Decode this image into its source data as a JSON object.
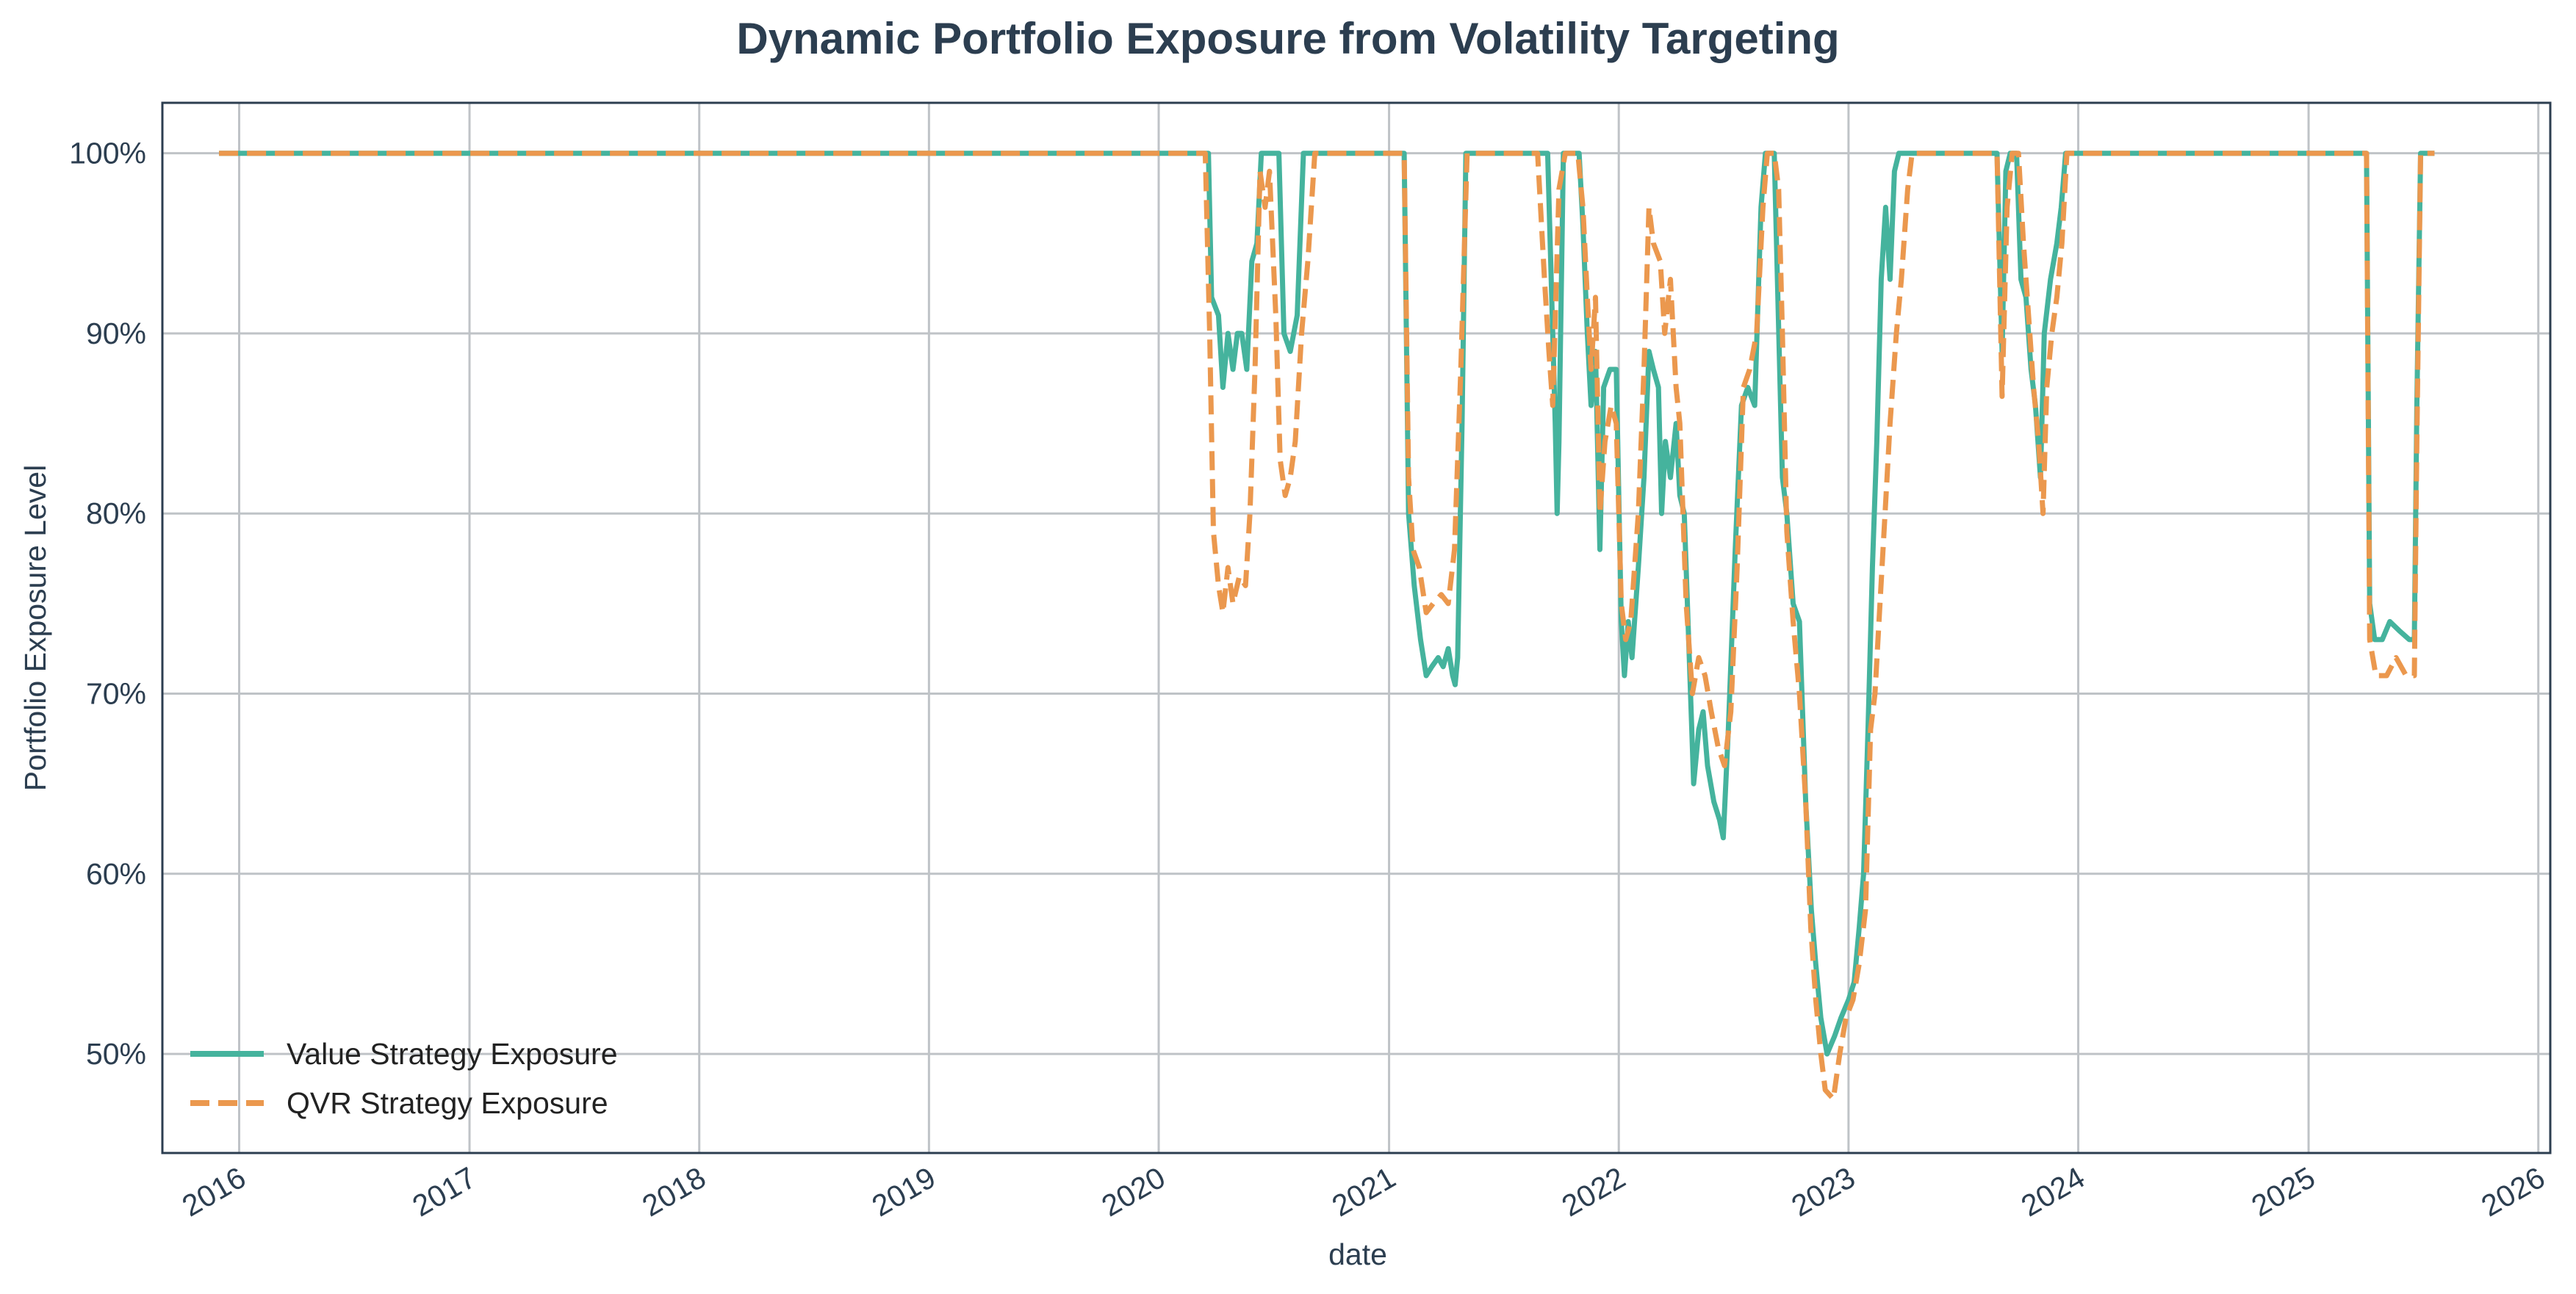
{
  "chart_data": {
    "type": "line",
    "title": "Dynamic Portfolio Exposure from Volatility Targeting",
    "xlabel": "date",
    "ylabel": "Portfolio Exposure Level",
    "xlim": [
      "2015-09-01",
      "2026-01-20"
    ],
    "ylim": [
      0.445,
      1.028
    ],
    "x_ticks": [
      "2016",
      "2017",
      "2018",
      "2019",
      "2020",
      "2021",
      "2022",
      "2023",
      "2024",
      "2025",
      "2026"
    ],
    "y_ticks": [
      0.5,
      0.6,
      0.7,
      0.8,
      0.9,
      1.0
    ],
    "y_tick_labels": [
      "50%",
      "60%",
      "70%",
      "80%",
      "90%",
      "100%"
    ],
    "grid": true,
    "legend_position": "lower-left",
    "series": [
      {
        "name": "Value Strategy Exposure",
        "color": "#45b39d",
        "style": "solid",
        "points": [
          [
            "2015-11-30",
            1.0
          ],
          [
            "2020-03-20",
            1.0
          ],
          [
            "2020-03-25",
            0.92
          ],
          [
            "2020-04-05",
            0.91
          ],
          [
            "2020-04-12",
            0.87
          ],
          [
            "2020-04-20",
            0.9
          ],
          [
            "2020-04-28",
            0.88
          ],
          [
            "2020-05-05",
            0.9
          ],
          [
            "2020-05-12",
            0.9
          ],
          [
            "2020-05-20",
            0.88
          ],
          [
            "2020-05-28",
            0.94
          ],
          [
            "2020-06-05",
            0.95
          ],
          [
            "2020-06-12",
            1.0
          ],
          [
            "2020-07-10",
            1.0
          ],
          [
            "2020-07-18",
            0.9
          ],
          [
            "2020-07-28",
            0.89
          ],
          [
            "2020-08-08",
            0.91
          ],
          [
            "2020-08-18",
            1.0
          ],
          [
            "2021-01-25",
            1.0
          ],
          [
            "2021-02-01",
            0.8
          ],
          [
            "2021-02-10",
            0.76
          ],
          [
            "2021-02-20",
            0.73
          ],
          [
            "2021-03-01",
            0.71
          ],
          [
            "2021-03-10",
            0.715
          ],
          [
            "2021-03-20",
            0.72
          ],
          [
            "2021-03-28",
            0.715
          ],
          [
            "2021-04-05",
            0.725
          ],
          [
            "2021-04-12",
            0.71
          ],
          [
            "2021-04-16",
            0.705
          ],
          [
            "2021-04-20",
            0.72
          ],
          [
            "2021-04-27",
            0.85
          ],
          [
            "2021-05-03",
            1.0
          ],
          [
            "2021-09-10",
            1.0
          ],
          [
            "2021-09-18",
            0.9
          ],
          [
            "2021-09-22",
            0.85
          ],
          [
            "2021-09-25",
            0.8
          ],
          [
            "2021-09-28",
            0.84
          ],
          [
            "2021-10-05",
            1.0
          ],
          [
            "2021-10-30",
            1.0
          ],
          [
            "2021-11-05",
            0.96
          ],
          [
            "2021-11-12",
            0.9
          ],
          [
            "2021-11-18",
            0.86
          ],
          [
            "2021-11-25",
            0.89
          ],
          [
            "2021-12-02",
            0.78
          ],
          [
            "2021-12-08",
            0.87
          ],
          [
            "2021-12-18",
            0.88
          ],
          [
            "2021-12-28",
            0.88
          ],
          [
            "2022-01-05",
            0.74
          ],
          [
            "2022-01-10",
            0.71
          ],
          [
            "2022-01-16",
            0.74
          ],
          [
            "2022-01-22",
            0.72
          ],
          [
            "2022-02-01",
            0.77
          ],
          [
            "2022-02-10",
            0.82
          ],
          [
            "2022-02-18",
            0.89
          ],
          [
            "2022-02-25",
            0.88
          ],
          [
            "2022-03-05",
            0.87
          ],
          [
            "2022-03-10",
            0.8
          ],
          [
            "2022-03-16",
            0.84
          ],
          [
            "2022-03-24",
            0.82
          ],
          [
            "2022-04-02",
            0.85
          ],
          [
            "2022-04-08",
            0.81
          ],
          [
            "2022-04-15",
            0.8
          ],
          [
            "2022-04-22",
            0.73
          ],
          [
            "2022-04-30",
            0.65
          ],
          [
            "2022-05-08",
            0.68
          ],
          [
            "2022-05-15",
            0.69
          ],
          [
            "2022-05-22",
            0.66
          ],
          [
            "2022-06-01",
            0.64
          ],
          [
            "2022-06-10",
            0.63
          ],
          [
            "2022-06-16",
            0.62
          ],
          [
            "2022-06-24",
            0.68
          ],
          [
            "2022-07-05",
            0.78
          ],
          [
            "2022-07-15",
            0.86
          ],
          [
            "2022-07-25",
            0.87
          ],
          [
            "2022-08-05",
            0.86
          ],
          [
            "2022-08-15",
            0.97
          ],
          [
            "2022-08-22",
            1.0
          ],
          [
            "2022-09-05",
            1.0
          ],
          [
            "2022-09-10",
            0.93
          ],
          [
            "2022-09-18",
            0.82
          ],
          [
            "2022-09-25",
            0.8
          ],
          [
            "2022-10-05",
            0.75
          ],
          [
            "2022-10-15",
            0.74
          ],
          [
            "2022-10-25",
            0.64
          ],
          [
            "2022-11-03",
            0.58
          ],
          [
            "2022-11-10",
            0.55
          ],
          [
            "2022-11-18",
            0.52
          ],
          [
            "2022-11-28",
            0.5
          ],
          [
            "2022-12-10",
            0.51
          ],
          [
            "2022-12-20",
            0.52
          ],
          [
            "2023-01-01",
            0.53
          ],
          [
            "2023-01-10",
            0.54
          ],
          [
            "2023-01-18",
            0.57
          ],
          [
            "2023-01-25",
            0.6
          ],
          [
            "2023-02-01",
            0.68
          ],
          [
            "2023-02-08",
            0.77
          ],
          [
            "2023-02-15",
            0.84
          ],
          [
            "2023-02-22",
            0.93
          ],
          [
            "2023-03-01",
            0.97
          ],
          [
            "2023-03-08",
            0.93
          ],
          [
            "2023-03-15",
            0.99
          ],
          [
            "2023-03-22",
            1.0
          ],
          [
            "2023-08-25",
            1.0
          ],
          [
            "2023-09-02",
            0.89
          ],
          [
            "2023-09-08",
            0.99
          ],
          [
            "2023-09-15",
            1.0
          ],
          [
            "2023-09-25",
            1.0
          ],
          [
            "2023-10-02",
            0.93
          ],
          [
            "2023-10-10",
            0.92
          ],
          [
            "2023-10-18",
            0.88
          ],
          [
            "2023-10-25",
            0.86
          ],
          [
            "2023-11-02",
            0.82
          ],
          [
            "2023-11-08",
            0.9
          ],
          [
            "2023-11-18",
            0.93
          ],
          [
            "2023-11-28",
            0.95
          ],
          [
            "2023-12-05",
            0.97
          ],
          [
            "2023-12-12",
            1.0
          ],
          [
            "2025-04-03",
            1.0
          ],
          [
            "2025-04-08",
            0.75
          ],
          [
            "2025-04-16",
            0.73
          ],
          [
            "2025-04-28",
            0.73
          ],
          [
            "2025-05-10",
            0.74
          ],
          [
            "2025-05-25",
            0.735
          ],
          [
            "2025-06-10",
            0.73
          ],
          [
            "2025-06-18",
            0.73
          ],
          [
            "2025-06-22",
            0.86
          ],
          [
            "2025-06-28",
            1.0
          ],
          [
            "2025-07-20",
            1.0
          ]
        ]
      },
      {
        "name": "QVR Strategy Exposure",
        "color": "#eb984e",
        "style": "dashed",
        "points": [
          [
            "2015-11-30",
            1.0
          ],
          [
            "2020-03-15",
            1.0
          ],
          [
            "2020-03-22",
            0.9
          ],
          [
            "2020-03-28",
            0.79
          ],
          [
            "2020-04-05",
            0.76
          ],
          [
            "2020-04-12",
            0.745
          ],
          [
            "2020-04-20",
            0.77
          ],
          [
            "2020-04-28",
            0.75
          ],
          [
            "2020-05-08",
            0.765
          ],
          [
            "2020-05-18",
            0.76
          ],
          [
            "2020-05-25",
            0.8
          ],
          [
            "2020-06-02",
            0.88
          ],
          [
            "2020-06-10",
            0.99
          ],
          [
            "2020-06-18",
            0.97
          ],
          [
            "2020-06-25",
            0.99
          ],
          [
            "2020-07-05",
            0.91
          ],
          [
            "2020-07-12",
            0.83
          ],
          [
            "2020-07-20",
            0.81
          ],
          [
            "2020-07-28",
            0.82
          ],
          [
            "2020-08-05",
            0.84
          ],
          [
            "2020-08-15",
            0.9
          ],
          [
            "2020-08-25",
            0.94
          ],
          [
            "2020-09-05",
            1.0
          ],
          [
            "2021-01-25",
            1.0
          ],
          [
            "2021-02-01",
            0.82
          ],
          [
            "2021-02-08",
            0.78
          ],
          [
            "2021-02-18",
            0.77
          ],
          [
            "2021-03-01",
            0.745
          ],
          [
            "2021-03-12",
            0.75
          ],
          [
            "2021-03-25",
            0.755
          ],
          [
            "2021-04-05",
            0.75
          ],
          [
            "2021-04-15",
            0.78
          ],
          [
            "2021-04-25",
            0.88
          ],
          [
            "2021-05-05",
            1.0
          ],
          [
            "2021-08-25",
            1.0
          ],
          [
            "2021-09-05",
            0.93
          ],
          [
            "2021-09-12",
            0.89
          ],
          [
            "2021-09-18",
            0.86
          ],
          [
            "2021-09-28",
            0.98
          ],
          [
            "2021-10-08",
            1.0
          ],
          [
            "2021-10-28",
            1.0
          ],
          [
            "2021-11-05",
            0.97
          ],
          [
            "2021-11-12",
            0.92
          ],
          [
            "2021-11-18",
            0.88
          ],
          [
            "2021-11-25",
            0.92
          ],
          [
            "2021-12-02",
            0.8
          ],
          [
            "2021-12-10",
            0.84
          ],
          [
            "2021-12-20",
            0.86
          ],
          [
            "2021-12-28",
            0.85
          ],
          [
            "2022-01-05",
            0.75
          ],
          [
            "2022-01-12",
            0.73
          ],
          [
            "2022-01-20",
            0.74
          ],
          [
            "2022-02-01",
            0.8
          ],
          [
            "2022-02-10",
            0.88
          ],
          [
            "2022-02-18",
            0.97
          ],
          [
            "2022-02-25",
            0.95
          ],
          [
            "2022-03-08",
            0.94
          ],
          [
            "2022-03-15",
            0.9
          ],
          [
            "2022-03-24",
            0.93
          ],
          [
            "2022-04-02",
            0.87
          ],
          [
            "2022-04-08",
            0.85
          ],
          [
            "2022-04-18",
            0.75
          ],
          [
            "2022-04-28",
            0.7
          ],
          [
            "2022-05-08",
            0.72
          ],
          [
            "2022-05-18",
            0.71
          ],
          [
            "2022-05-28",
            0.69
          ],
          [
            "2022-06-08",
            0.67
          ],
          [
            "2022-06-18",
            0.66
          ],
          [
            "2022-06-28",
            0.69
          ],
          [
            "2022-07-08",
            0.77
          ],
          [
            "2022-07-18",
            0.87
          ],
          [
            "2022-07-28",
            0.88
          ],
          [
            "2022-08-08",
            0.9
          ],
          [
            "2022-08-18",
            0.97
          ],
          [
            "2022-08-25",
            1.0
          ],
          [
            "2022-09-05",
            1.0
          ],
          [
            "2022-09-12",
            0.98
          ],
          [
            "2022-09-18",
            0.9
          ],
          [
            "2022-09-25",
            0.79
          ],
          [
            "2022-10-05",
            0.74
          ],
          [
            "2022-10-15",
            0.7
          ],
          [
            "2022-10-25",
            0.64
          ],
          [
            "2022-11-02",
            0.57
          ],
          [
            "2022-11-10",
            0.53
          ],
          [
            "2022-11-18",
            0.5
          ],
          [
            "2022-11-25",
            0.48
          ],
          [
            "2022-12-08",
            0.475
          ],
          [
            "2022-12-18",
            0.5
          ],
          [
            "2022-12-28",
            0.52
          ],
          [
            "2023-01-08",
            0.53
          ],
          [
            "2023-01-18",
            0.55
          ],
          [
            "2023-01-28",
            0.58
          ],
          [
            "2023-02-05",
            0.68
          ],
          [
            "2023-02-12",
            0.7
          ],
          [
            "2023-02-20",
            0.75
          ],
          [
            "2023-02-28",
            0.8
          ],
          [
            "2023-03-08",
            0.85
          ],
          [
            "2023-03-18",
            0.9
          ],
          [
            "2023-03-26",
            0.93
          ],
          [
            "2023-04-05",
            0.98
          ],
          [
            "2023-04-12",
            1.0
          ],
          [
            "2023-08-25",
            1.0
          ],
          [
            "2023-09-02",
            0.865
          ],
          [
            "2023-09-10",
            0.97
          ],
          [
            "2023-09-18",
            1.0
          ],
          [
            "2023-09-28",
            1.0
          ],
          [
            "2023-10-06",
            0.95
          ],
          [
            "2023-10-14",
            0.91
          ],
          [
            "2023-10-22",
            0.87
          ],
          [
            "2023-10-30",
            0.84
          ],
          [
            "2023-11-06",
            0.8
          ],
          [
            "2023-11-12",
            0.87
          ],
          [
            "2023-11-20",
            0.9
          ],
          [
            "2023-11-28",
            0.92
          ],
          [
            "2023-12-06",
            0.95
          ],
          [
            "2023-12-14",
            1.0
          ],
          [
            "2025-04-03",
            1.0
          ],
          [
            "2025-04-08",
            0.73
          ],
          [
            "2025-04-18",
            0.71
          ],
          [
            "2025-05-05",
            0.71
          ],
          [
            "2025-05-20",
            0.72
          ],
          [
            "2025-06-05",
            0.71
          ],
          [
            "2025-06-18",
            0.71
          ],
          [
            "2025-06-22",
            0.84
          ],
          [
            "2025-06-28",
            1.0
          ],
          [
            "2025-07-20",
            1.0
          ]
        ]
      }
    ]
  }
}
